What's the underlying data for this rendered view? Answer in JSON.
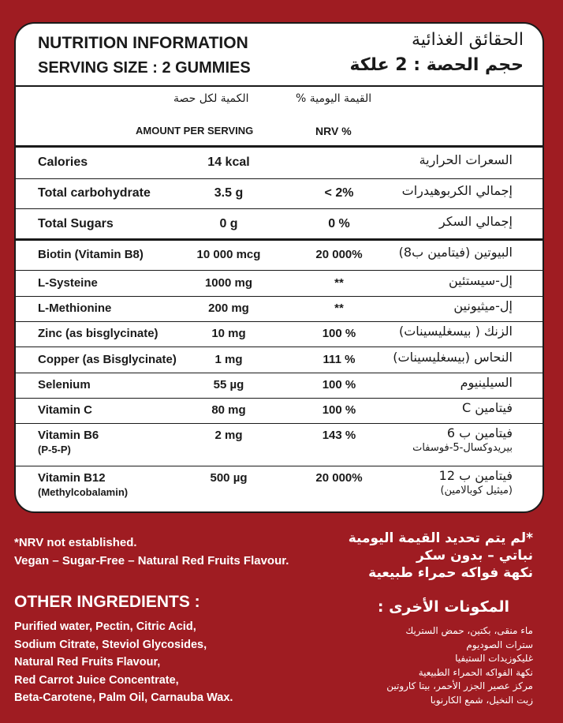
{
  "header": {
    "title_en": "NUTRITION INFORMATION",
    "serving_en": "SERVING SIZE : 2 GUMMIES",
    "title_ar": "الحقائق الغذائية",
    "serving_ar": "حجم الحصة : 2 علكة"
  },
  "table": {
    "head_ar": {
      "amount": "الكمية لكل حصة",
      "nrv": "القيمة اليومية %"
    },
    "head_en": {
      "amount": "AMOUNT PER SERVING",
      "nrv": "NRV %"
    },
    "rows": [
      {
        "name": "Calories",
        "amount": "14 kcal",
        "nrv": null,
        "ar": "السعرات الحرارية"
      },
      {
        "name": "Total carbohydrate",
        "amount": "3.5 g",
        "nrv": "< 2%",
        "ar": "إجمالي الكربوهيدرات"
      },
      {
        "name": "Total Sugars",
        "amount": "0 g",
        "nrv": "0 %",
        "ar": "إجمالي السكر"
      },
      {
        "name": "Biotin (Vitamin B8)",
        "amount": "10 000 mcg",
        "nrv": "20 000%",
        "ar": "البيوتين (فيتامين ب8)"
      },
      {
        "name": "L-Systeine",
        "amount": "1000 mg",
        "nrv": "**",
        "ar": "إل-سيستئين"
      },
      {
        "name": "L-Methionine",
        "amount": "200 mg",
        "nrv": "**",
        "ar": "إل-ميثيونين"
      },
      {
        "name": "Zinc (as bisglycinate)",
        "amount": "10 mg",
        "nrv": "100 %",
        "ar": "الزنك ( بيسغليسينات)"
      },
      {
        "name": "Copper (as Bisglycinate)",
        "amount": "1 mg",
        "nrv": "111 %",
        "ar": "النحاس (بيسغليسينات)"
      },
      {
        "name": "Selenium",
        "amount": "55 µg",
        "nrv": "100 %",
        "ar": "السيلينيوم"
      },
      {
        "name": "Vitamin C",
        "amount": "80 mg",
        "nrv": "100 %",
        "ar": "فيتامين C"
      },
      {
        "name": "Vitamin B6",
        "name_sub": "(P-5-P)",
        "amount": "2 mg",
        "nrv": "143 %",
        "ar": "فيتامين ب 6",
        "ar_sub": "بيريدوكسال-5-فوسفات"
      },
      {
        "name": "Vitamin B12",
        "name_sub": "(Methylcobalamin)",
        "amount": "500 µg",
        "nrv": "20 000%",
        "ar": "فيتامين ب 12",
        "ar_sub": "(ميثيل كوبالامين)"
      }
    ]
  },
  "notes": {
    "en": [
      "*NRV not established.",
      "Vegan – Sugar-Free – Natural Red Fruits Flavour."
    ],
    "ar": [
      "*لم يتم تحديد القيمة اليومية",
      "نباتي – بدون سكر",
      "نكهة فواكه حمراء طبيعية"
    ]
  },
  "ingredients": {
    "title_en": "OTHER INGREDIENTS :",
    "title_ar": "المكونات الأخرى :",
    "en": [
      "Purified water, Pectin, Citric Acid,",
      "Sodium Citrate, Steviol Glycosides,",
      "Natural Red Fruits Flavour,",
      "Red Carrot Juice Concentrate,",
      "Beta-Carotene, Palm Oil, Carnauba Wax."
    ],
    "ar": [
      "ماء منقى، بكتين، حمض الستريك",
      "سترات الصوديوم",
      "غليكوزيدات الستيفيا",
      "نكهة الفواكه الحمراء الطبيعية",
      "مركز عصير الجزر الأحمر، بيتا كاروتين",
      "زيت النخيل، شمع الكارنوبا"
    ]
  }
}
